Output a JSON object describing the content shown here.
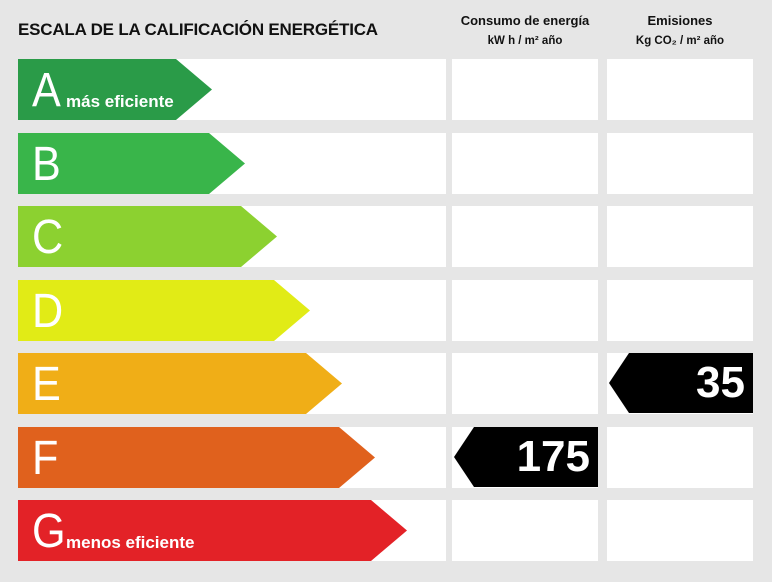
{
  "header": {
    "title": "ESCALA DE LA CALIFICACIÓN ENERGÉTICA",
    "consumo_title": "Consumo de energía",
    "consumo_unit": "kW h / m² año",
    "emisiones_title": "Emisiones",
    "emisiones_unit": "Kg CO₂ / m² año"
  },
  "chart_data": {
    "type": "bar",
    "categories": [
      "A",
      "B",
      "C",
      "D",
      "E",
      "F",
      "G"
    ],
    "descriptions": [
      "más eficiente",
      "",
      "",
      "",
      "",
      "",
      "menos eficiente"
    ],
    "colors": [
      "#2a9b48",
      "#39b54a",
      "#8cd130",
      "#e1eb16",
      "#f0ae17",
      "#e0611d",
      "#e32227"
    ],
    "consumo": {
      "rating": "F",
      "value": "175"
    },
    "emisiones": {
      "rating": "E",
      "value": "35"
    }
  }
}
